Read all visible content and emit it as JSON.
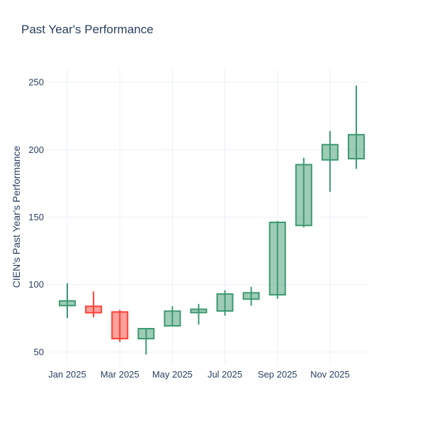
{
  "title": "Past Year's Performance",
  "colors": {
    "text": "#2a3f5f",
    "background": "#ffffff",
    "grid": "#EBF0F8",
    "increasing_line": "#3D9970",
    "increasing_fill": "rgba(61,153,112,0.5)",
    "decreasing_line": "#FF4136",
    "decreasing_fill": "rgba(255,65,54,0.5)"
  },
  "chart_data": {
    "type": "candlestick",
    "title": "Past Year's Performance",
    "xlabel": "",
    "ylabel": "CIEN's Past Year's Performance",
    "ticker": "CIEN",
    "grid": true,
    "legend": "none",
    "ylim": [
      40,
      260
    ],
    "y_ticks": [
      50,
      100,
      150,
      200,
      250
    ],
    "y_tick_labels": [
      "50",
      "100",
      "150",
      "200",
      "250"
    ],
    "x_tick_labels": [
      "Jan 2025",
      "Mar 2025",
      "May 2025",
      "Jul 2025",
      "Sep 2025",
      "Nov 2025"
    ],
    "categories": [
      "Jan 2025",
      "Feb 2025",
      "Mar 2025",
      "Apr 2025",
      "May 2025",
      "Jun 2025",
      "Jul 2025",
      "Aug 2025",
      "Sep 2025",
      "Oct 2025",
      "Nov 2025",
      "Dec 2025"
    ],
    "series": [
      {
        "month": "Jan 2025",
        "open": 84.4,
        "high": 101.0,
        "low": 75.1,
        "close": 87.9,
        "direction": "up"
      },
      {
        "month": "Feb 2025",
        "open": 83.9,
        "high": 94.9,
        "low": 75.7,
        "close": 79.1,
        "direction": "down"
      },
      {
        "month": "Mar 2025",
        "open": 79.7,
        "high": 81.2,
        "low": 57.4,
        "close": 59.9,
        "direction": "down"
      },
      {
        "month": "Apr 2025",
        "open": 59.9,
        "high": 67.3,
        "low": 48.2,
        "close": 67.3,
        "direction": "up"
      },
      {
        "month": "May 2025",
        "open": 69.4,
        "high": 84.0,
        "low": 69.4,
        "close": 80.3,
        "direction": "up"
      },
      {
        "month": "Jun 2025",
        "open": 79.2,
        "high": 85.7,
        "low": 70.3,
        "close": 81.7,
        "direction": "up"
      },
      {
        "month": "Jul 2025",
        "open": 80.4,
        "high": 95.8,
        "low": 76.9,
        "close": 93.0,
        "direction": "up"
      },
      {
        "month": "Aug 2025",
        "open": 89.2,
        "high": 98.3,
        "low": 84.3,
        "close": 93.9,
        "direction": "up"
      },
      {
        "month": "Sep 2025",
        "open": 92.4,
        "high": 147.1,
        "low": 89.4,
        "close": 146.1,
        "direction": "up"
      },
      {
        "month": "Oct 2025",
        "open": 143.8,
        "high": 194.0,
        "low": 142.4,
        "close": 188.9,
        "direction": "up"
      },
      {
        "month": "Nov 2025",
        "open": 192.4,
        "high": 213.8,
        "low": 168.8,
        "close": 203.7,
        "direction": "up"
      },
      {
        "month": "Dec 2025",
        "open": 193.3,
        "high": 247.5,
        "low": 185.8,
        "close": 211.1,
        "direction": "up"
      }
    ]
  }
}
